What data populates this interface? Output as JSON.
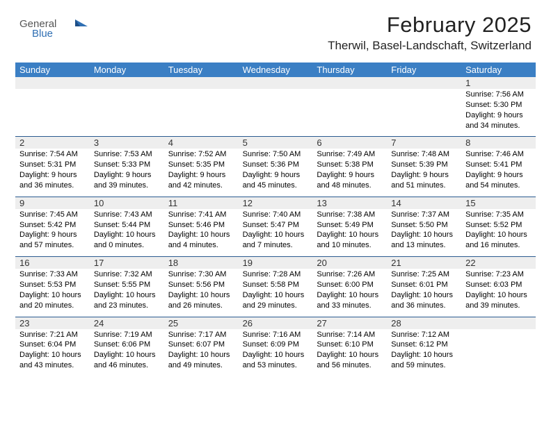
{
  "brand": {
    "word1": "General",
    "word2": "Blue"
  },
  "header": {
    "title": "February 2025",
    "location": "Therwil, Basel-Landschaft, Switzerland"
  },
  "styles": {
    "header_bg": "#3b7fc4",
    "header_text": "#ffffff",
    "daynum_bg": "#eeeeee",
    "week_rule": "#2a5a8f",
    "title_fontsize": 31,
    "location_fontsize": 17,
    "dow_fontsize": 13,
    "daynum_fontsize": 13,
    "body_fontsize": 11
  },
  "daysOfWeek": [
    "Sunday",
    "Monday",
    "Tuesday",
    "Wednesday",
    "Thursday",
    "Friday",
    "Saturday"
  ],
  "weeks": [
    [
      {
        "n": "",
        "sunrise": "",
        "sunset": "",
        "daylight": ""
      },
      {
        "n": "",
        "sunrise": "",
        "sunset": "",
        "daylight": ""
      },
      {
        "n": "",
        "sunrise": "",
        "sunset": "",
        "daylight": ""
      },
      {
        "n": "",
        "sunrise": "",
        "sunset": "",
        "daylight": ""
      },
      {
        "n": "",
        "sunrise": "",
        "sunset": "",
        "daylight": ""
      },
      {
        "n": "",
        "sunrise": "",
        "sunset": "",
        "daylight": ""
      },
      {
        "n": "1",
        "sunrise": "Sunrise: 7:56 AM",
        "sunset": "Sunset: 5:30 PM",
        "daylight": "Daylight: 9 hours and 34 minutes."
      }
    ],
    [
      {
        "n": "2",
        "sunrise": "Sunrise: 7:54 AM",
        "sunset": "Sunset: 5:31 PM",
        "daylight": "Daylight: 9 hours and 36 minutes."
      },
      {
        "n": "3",
        "sunrise": "Sunrise: 7:53 AM",
        "sunset": "Sunset: 5:33 PM",
        "daylight": "Daylight: 9 hours and 39 minutes."
      },
      {
        "n": "4",
        "sunrise": "Sunrise: 7:52 AM",
        "sunset": "Sunset: 5:35 PM",
        "daylight": "Daylight: 9 hours and 42 minutes."
      },
      {
        "n": "5",
        "sunrise": "Sunrise: 7:50 AM",
        "sunset": "Sunset: 5:36 PM",
        "daylight": "Daylight: 9 hours and 45 minutes."
      },
      {
        "n": "6",
        "sunrise": "Sunrise: 7:49 AM",
        "sunset": "Sunset: 5:38 PM",
        "daylight": "Daylight: 9 hours and 48 minutes."
      },
      {
        "n": "7",
        "sunrise": "Sunrise: 7:48 AM",
        "sunset": "Sunset: 5:39 PM",
        "daylight": "Daylight: 9 hours and 51 minutes."
      },
      {
        "n": "8",
        "sunrise": "Sunrise: 7:46 AM",
        "sunset": "Sunset: 5:41 PM",
        "daylight": "Daylight: 9 hours and 54 minutes."
      }
    ],
    [
      {
        "n": "9",
        "sunrise": "Sunrise: 7:45 AM",
        "sunset": "Sunset: 5:42 PM",
        "daylight": "Daylight: 9 hours and 57 minutes."
      },
      {
        "n": "10",
        "sunrise": "Sunrise: 7:43 AM",
        "sunset": "Sunset: 5:44 PM",
        "daylight": "Daylight: 10 hours and 0 minutes."
      },
      {
        "n": "11",
        "sunrise": "Sunrise: 7:41 AM",
        "sunset": "Sunset: 5:46 PM",
        "daylight": "Daylight: 10 hours and 4 minutes."
      },
      {
        "n": "12",
        "sunrise": "Sunrise: 7:40 AM",
        "sunset": "Sunset: 5:47 PM",
        "daylight": "Daylight: 10 hours and 7 minutes."
      },
      {
        "n": "13",
        "sunrise": "Sunrise: 7:38 AM",
        "sunset": "Sunset: 5:49 PM",
        "daylight": "Daylight: 10 hours and 10 minutes."
      },
      {
        "n": "14",
        "sunrise": "Sunrise: 7:37 AM",
        "sunset": "Sunset: 5:50 PM",
        "daylight": "Daylight: 10 hours and 13 minutes."
      },
      {
        "n": "15",
        "sunrise": "Sunrise: 7:35 AM",
        "sunset": "Sunset: 5:52 PM",
        "daylight": "Daylight: 10 hours and 16 minutes."
      }
    ],
    [
      {
        "n": "16",
        "sunrise": "Sunrise: 7:33 AM",
        "sunset": "Sunset: 5:53 PM",
        "daylight": "Daylight: 10 hours and 20 minutes."
      },
      {
        "n": "17",
        "sunrise": "Sunrise: 7:32 AM",
        "sunset": "Sunset: 5:55 PM",
        "daylight": "Daylight: 10 hours and 23 minutes."
      },
      {
        "n": "18",
        "sunrise": "Sunrise: 7:30 AM",
        "sunset": "Sunset: 5:56 PM",
        "daylight": "Daylight: 10 hours and 26 minutes."
      },
      {
        "n": "19",
        "sunrise": "Sunrise: 7:28 AM",
        "sunset": "Sunset: 5:58 PM",
        "daylight": "Daylight: 10 hours and 29 minutes."
      },
      {
        "n": "20",
        "sunrise": "Sunrise: 7:26 AM",
        "sunset": "Sunset: 6:00 PM",
        "daylight": "Daylight: 10 hours and 33 minutes."
      },
      {
        "n": "21",
        "sunrise": "Sunrise: 7:25 AM",
        "sunset": "Sunset: 6:01 PM",
        "daylight": "Daylight: 10 hours and 36 minutes."
      },
      {
        "n": "22",
        "sunrise": "Sunrise: 7:23 AM",
        "sunset": "Sunset: 6:03 PM",
        "daylight": "Daylight: 10 hours and 39 minutes."
      }
    ],
    [
      {
        "n": "23",
        "sunrise": "Sunrise: 7:21 AM",
        "sunset": "Sunset: 6:04 PM",
        "daylight": "Daylight: 10 hours and 43 minutes."
      },
      {
        "n": "24",
        "sunrise": "Sunrise: 7:19 AM",
        "sunset": "Sunset: 6:06 PM",
        "daylight": "Daylight: 10 hours and 46 minutes."
      },
      {
        "n": "25",
        "sunrise": "Sunrise: 7:17 AM",
        "sunset": "Sunset: 6:07 PM",
        "daylight": "Daylight: 10 hours and 49 minutes."
      },
      {
        "n": "26",
        "sunrise": "Sunrise: 7:16 AM",
        "sunset": "Sunset: 6:09 PM",
        "daylight": "Daylight: 10 hours and 53 minutes."
      },
      {
        "n": "27",
        "sunrise": "Sunrise: 7:14 AM",
        "sunset": "Sunset: 6:10 PM",
        "daylight": "Daylight: 10 hours and 56 minutes."
      },
      {
        "n": "28",
        "sunrise": "Sunrise: 7:12 AM",
        "sunset": "Sunset: 6:12 PM",
        "daylight": "Daylight: 10 hours and 59 minutes."
      },
      {
        "n": "",
        "sunrise": "",
        "sunset": "",
        "daylight": ""
      }
    ]
  ]
}
